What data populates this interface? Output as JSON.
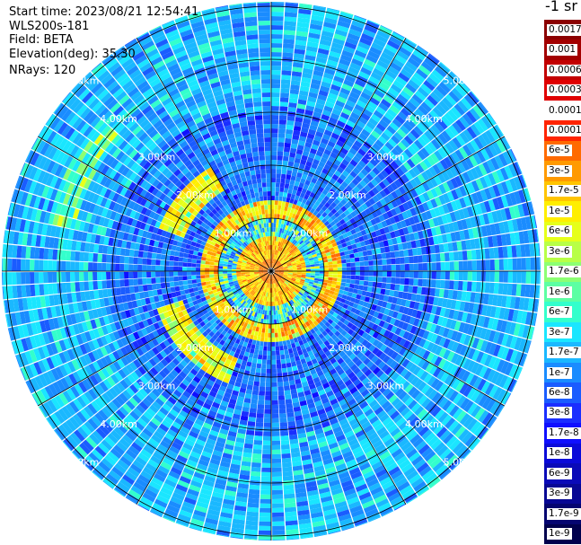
{
  "info": {
    "start_time": "Start time: 2023/08/21 12:54:41",
    "radar": "WLS200s-181",
    "field": "Field: BETA",
    "elevation": "Elevation(deg): 35.30",
    "nrays": "NRays: 120"
  },
  "colorbar": {
    "unit": "-1 sr",
    "labels": [
      "0.0017",
      "0.001",
      "0.0006",
      "0.0003",
      "0.00017",
      "0.0001",
      "6e-5",
      "3e-5",
      "1.7e-5",
      "1e-5",
      "6e-6",
      "3e-6",
      "1.7e-6",
      "1e-6",
      "6e-7",
      "3e-7",
      "1.7e-7",
      "1e-7",
      "6e-8",
      "3e-8",
      "1.7e-8",
      "1e-8",
      "6e-9",
      "3e-9",
      "1.7e-9",
      "1e-9"
    ],
    "colors": [
      "#8b0000",
      "#a30000",
      "#c30000",
      "#e00000",
      "#ffffff",
      "#ff2400",
      "#ff6a00",
      "#ff9a00",
      "#ffc400",
      "#ffee00",
      "#e6ff1a",
      "#b8ff47",
      "#8cff73",
      "#5cffa3",
      "#33ffcc",
      "#1ae6ff",
      "#1ab8ff",
      "#1a8cff",
      "#1a5cff",
      "#1a2eff",
      "#0f0fff",
      "#0a0ad9",
      "#0a0ab8",
      "#080894",
      "#050570",
      "#00004d"
    ]
  },
  "range_labels": [
    "1.00km",
    "2.00km",
    "3.00km",
    "4.00km",
    "5.00km"
  ]
}
